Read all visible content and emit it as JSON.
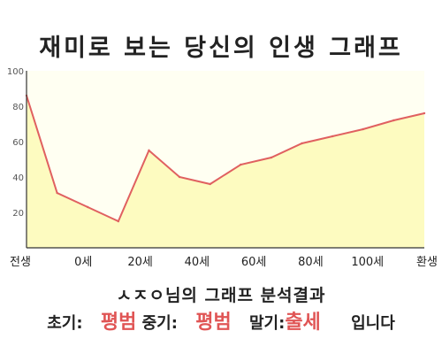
{
  "title": "재미로 보는 당신의 인생 그래프",
  "summary": "ㅅㅈㅇ님의 그래프 분석결과",
  "result": {
    "early_label": "초기:",
    "early_value": "평범",
    "middle_label": "중기:",
    "middle_value": "평범",
    "late_label": "말기:",
    "late_value": "출세",
    "ending": "입니다"
  },
  "colors": {
    "line": "#e06060",
    "fill": "#fdfbc0",
    "highlight": "#e05555"
  },
  "chart_data": {
    "type": "area",
    "title": "재미로 보는 당신의 인생 그래프",
    "xlabel": "",
    "ylabel": "",
    "x_tick_labels": [
      "전생",
      "0세",
      "20세",
      "40세",
      "60세",
      "80세",
      "100세",
      "환생"
    ],
    "x": [
      0,
      1,
      2,
      3,
      4,
      5,
      6,
      7,
      8,
      9,
      10,
      11,
      12,
      13
    ],
    "series": [
      {
        "values": [
          86,
          31,
          23,
          15,
          55,
          40,
          36,
          47,
          51,
          59,
          63,
          67,
          72,
          76
        ]
      }
    ],
    "y_ticks": [
      20,
      40,
      60,
      80,
      100
    ],
    "ylim": [
      0,
      100
    ],
    "grid": false
  }
}
